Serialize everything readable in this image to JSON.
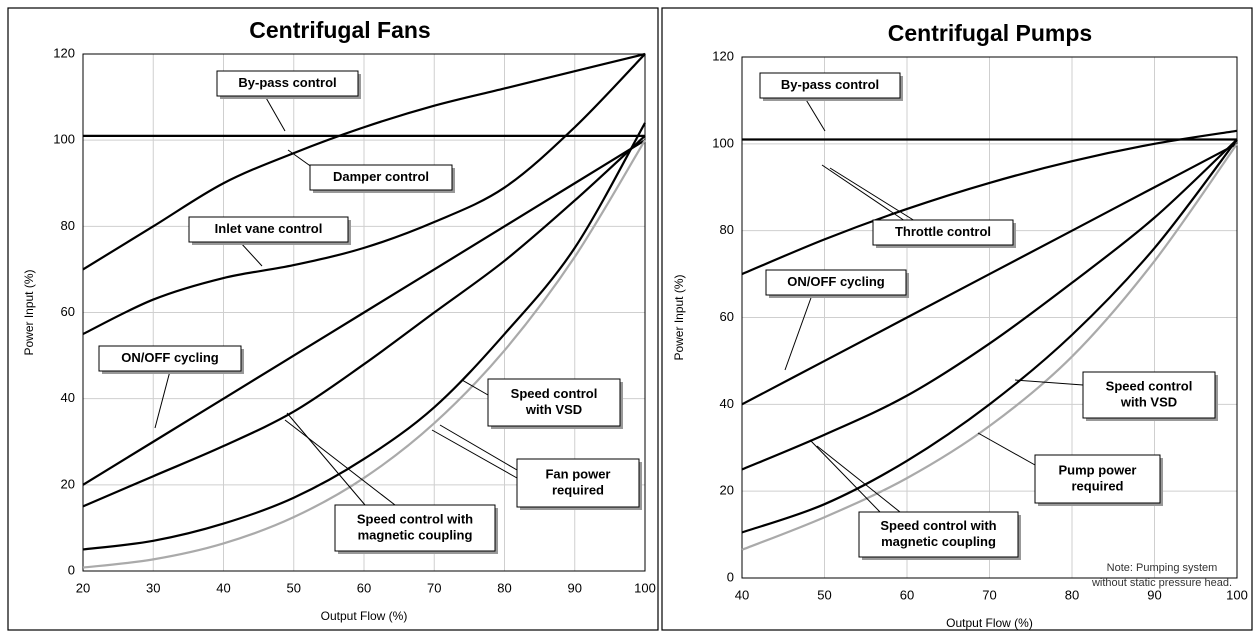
{
  "chart_data": [
    {
      "type": "line",
      "title": "Centrifugal Fans",
      "x_label": "Output Flow (%)",
      "y_label": "Power Input (%)",
      "x": [
        20,
        30,
        40,
        50,
        60,
        70,
        80,
        90,
        100
      ],
      "xlim": [
        20,
        100
      ],
      "ylim": [
        0,
        120
      ],
      "xticks": [
        20,
        30,
        40,
        50,
        60,
        70,
        80,
        90,
        100
      ],
      "yticks": [
        0,
        20,
        40,
        60,
        80,
        100,
        120
      ],
      "grid": true,
      "series": [
        {
          "name": "By-pass control",
          "color": "#000000",
          "values": [
            101,
            101,
            101,
            101,
            101,
            101,
            101,
            101,
            101
          ]
        },
        {
          "name": "Damper control",
          "color": "#000000",
          "values": [
            70,
            80,
            90,
            97,
            103,
            108,
            112,
            116,
            120
          ]
        },
        {
          "name": "Inlet vane control",
          "color": "#000000",
          "values": [
            55,
            63,
            68,
            71,
            75,
            81,
            89,
            103,
            120
          ]
        },
        {
          "name": "ON/OFF cycling",
          "color": "#000000",
          "values": [
            20,
            30,
            40,
            50,
            60,
            70,
            80,
            90,
            100
          ]
        },
        {
          "name": "Speed control with VSD",
          "color": "#000000",
          "values": [
            15,
            22,
            29,
            37,
            48,
            60,
            72,
            86,
            101
          ]
        },
        {
          "name": "Speed control with magnetic coupling",
          "color": "#000000",
          "values": [
            5,
            7,
            11,
            17,
            26,
            38,
            55,
            75,
            104
          ]
        },
        {
          "name": "Fan power required",
          "color": "#aaaaaa",
          "values": [
            0.8,
            2.7,
            6.4,
            12.5,
            21.6,
            34.3,
            51.2,
            72.9,
            100
          ]
        }
      ],
      "annotations": [
        [
          "By-pass control"
        ],
        [
          "Damper control"
        ],
        [
          "Inlet vane control"
        ],
        [
          "ON/OFF cycling"
        ],
        [
          "Speed control",
          "with VSD"
        ],
        [
          "Fan power",
          "required"
        ],
        [
          "Speed control with",
          "magnetic coupling"
        ]
      ]
    },
    {
      "type": "line",
      "title": "Centrifugal Pumps",
      "x_label": "Output Flow (%)",
      "y_label": "Power Input (%)",
      "x": [
        40,
        50,
        60,
        70,
        80,
        90,
        100
      ],
      "xlim": [
        40,
        100
      ],
      "ylim": [
        0,
        120
      ],
      "xticks": [
        40,
        50,
        60,
        70,
        80,
        90,
        100
      ],
      "yticks": [
        0,
        20,
        40,
        60,
        80,
        100,
        120
      ],
      "grid": true,
      "series": [
        {
          "name": "By-pass control",
          "color": "#000000",
          "values": [
            101,
            101,
            101,
            101,
            101,
            101,
            101
          ]
        },
        {
          "name": "Throttle control",
          "color": "#000000",
          "values": [
            70,
            78,
            85,
            91,
            96,
            100,
            103
          ]
        },
        {
          "name": "ON/OFF cycling",
          "color": "#000000",
          "values": [
            40,
            50,
            60,
            70,
            80,
            90,
            100
          ]
        },
        {
          "name": "Speed control with magnetic coupling",
          "color": "#000000",
          "values": [
            25,
            33,
            42,
            54,
            68,
            83,
            101
          ]
        },
        {
          "name": "Speed control with VSD",
          "color": "#000000",
          "values": [
            10.5,
            17,
            27,
            40,
            56,
            76,
            101
          ]
        },
        {
          "name": "Pump power required",
          "color": "#aaaaaa",
          "values": [
            6.5,
            14,
            23,
            35,
            51,
            73,
            100
          ]
        }
      ],
      "annotations": [
        [
          "By-pass control"
        ],
        [
          "Throttle control"
        ],
        [
          "ON/OFF cycling"
        ],
        [
          "Speed control",
          "with VSD"
        ],
        [
          "Pump power",
          "required"
        ],
        [
          "Speed control with",
          "magnetic coupling"
        ]
      ],
      "note": [
        "Note: Pumping system",
        "without static pressure head."
      ]
    }
  ]
}
